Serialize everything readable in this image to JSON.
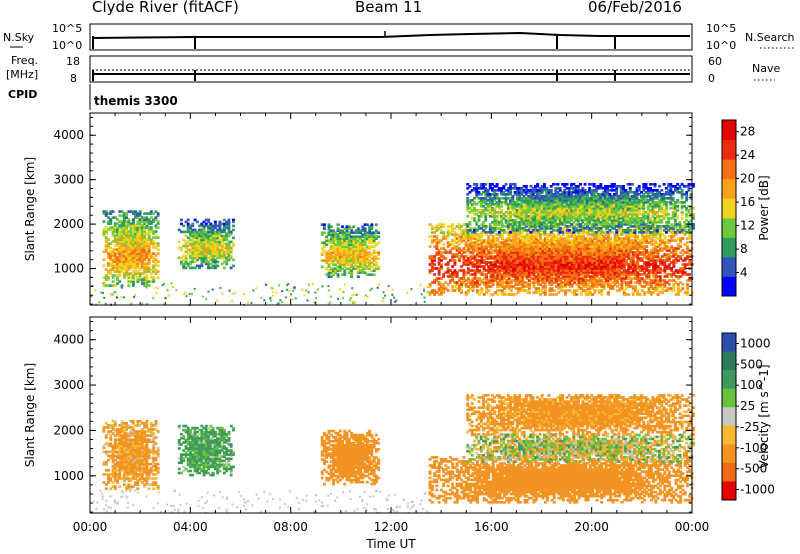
{
  "header": {
    "station": "Clyde River (fitACF)",
    "beam": "Beam 11",
    "date": "06/Feb/2016"
  },
  "top_panels": {
    "nsky_label": "N.Sky",
    "nsky_ticks": [
      "10^5",
      "10^0"
    ],
    "nsearch_label": "N.Search",
    "nsearch_ticks": [
      "10^5",
      "10^0"
    ],
    "freq_label_1": "Freq.",
    "freq_label_2": "[MHz]",
    "freq_ticks": [
      "18",
      "8"
    ],
    "nave_label": "Nave",
    "nave_ticks": [
      "60",
      "0"
    ],
    "cpid_label": "CPID",
    "cpid_value": "themis 3300"
  },
  "colors": {
    "power_scale": [
      "#0000ff",
      "#3355bb",
      "#2e9e5e",
      "#6ec93c",
      "#f2d21e",
      "#f7a21a",
      "#f36f12",
      "#ee2b10",
      "#e30000"
    ],
    "velocity_scale": [
      "#2a4fb0",
      "#2d7a5a",
      "#3f9a5e",
      "#66c23a",
      "#c8c8c0",
      "#f7b833",
      "#f39322",
      "#ef6a14",
      "#e40000"
    ]
  },
  "chart_data": [
    {
      "type": "heatmap",
      "title": "",
      "xlabel": "Time UT",
      "ylabel": "Slant Range [km]",
      "x_ticks": [
        "00:00",
        "04:00",
        "08:00",
        "12:00",
        "16:00",
        "20:00",
        "00:00"
      ],
      "y_ticks": [
        "1000",
        "2000",
        "3000",
        "4000"
      ],
      "xlim": [
        0,
        24
      ],
      "ylim": [
        180,
        4500
      ],
      "colorbar_label": "Power [dB]",
      "colorbar_ticks": [
        "4",
        "8",
        "12",
        "16",
        "20",
        "24",
        "28"
      ],
      "clim": [
        0,
        30
      ],
      "echo_regions_hours_km": [
        {
          "t0": 0.5,
          "t1": 2.7,
          "r0": 600,
          "r1": 2300,
          "level": 20
        },
        {
          "t0": 3.5,
          "t1": 5.7,
          "r0": 1000,
          "r1": 2100,
          "level": 16
        },
        {
          "t0": 9.2,
          "t1": 11.5,
          "r0": 800,
          "r1": 2000,
          "level": 18
        },
        {
          "t0": 13.5,
          "t1": 24,
          "r0": 400,
          "r1": 2000,
          "level": 27
        },
        {
          "t0": 15.0,
          "t1": 24,
          "r0": 1800,
          "r1": 2900,
          "level": 14
        }
      ]
    },
    {
      "type": "heatmap",
      "title": "",
      "xlabel": "Time UT",
      "ylabel": "Slant Range [km]",
      "x_ticks": [
        "00:00",
        "04:00",
        "08:00",
        "12:00",
        "16:00",
        "20:00",
        "00:00"
      ],
      "y_ticks": [
        "1000",
        "2000",
        "3000",
        "4000"
      ],
      "xlim": [
        0,
        24
      ],
      "ylim": [
        180,
        4500
      ],
      "colorbar_label": "Velocity [m s^-1]",
      "colorbar_ticks": [
        "1000",
        "500",
        "100",
        "25",
        "-25",
        "-100",
        "-500",
        "-1000"
      ],
      "echo_regions_hours_km": [
        {
          "t0": 0.5,
          "t1": 2.7,
          "r0": 700,
          "r1": 2200,
          "velocity": -150
        },
        {
          "t0": 3.5,
          "t1": 5.7,
          "r0": 1000,
          "r1": 2100,
          "velocity": 150
        },
        {
          "t0": 9.2,
          "t1": 11.5,
          "r0": 800,
          "r1": 2000,
          "velocity": -300
        },
        {
          "t0": 13.5,
          "t1": 24,
          "r0": 400,
          "r1": 1400,
          "velocity": -250
        },
        {
          "t0": 15.0,
          "t1": 24,
          "r0": 1300,
          "r1": 1900,
          "velocity": 0
        },
        {
          "t0": 15.0,
          "t1": 24,
          "r0": 1900,
          "r1": 2800,
          "velocity": -200
        }
      ]
    }
  ]
}
